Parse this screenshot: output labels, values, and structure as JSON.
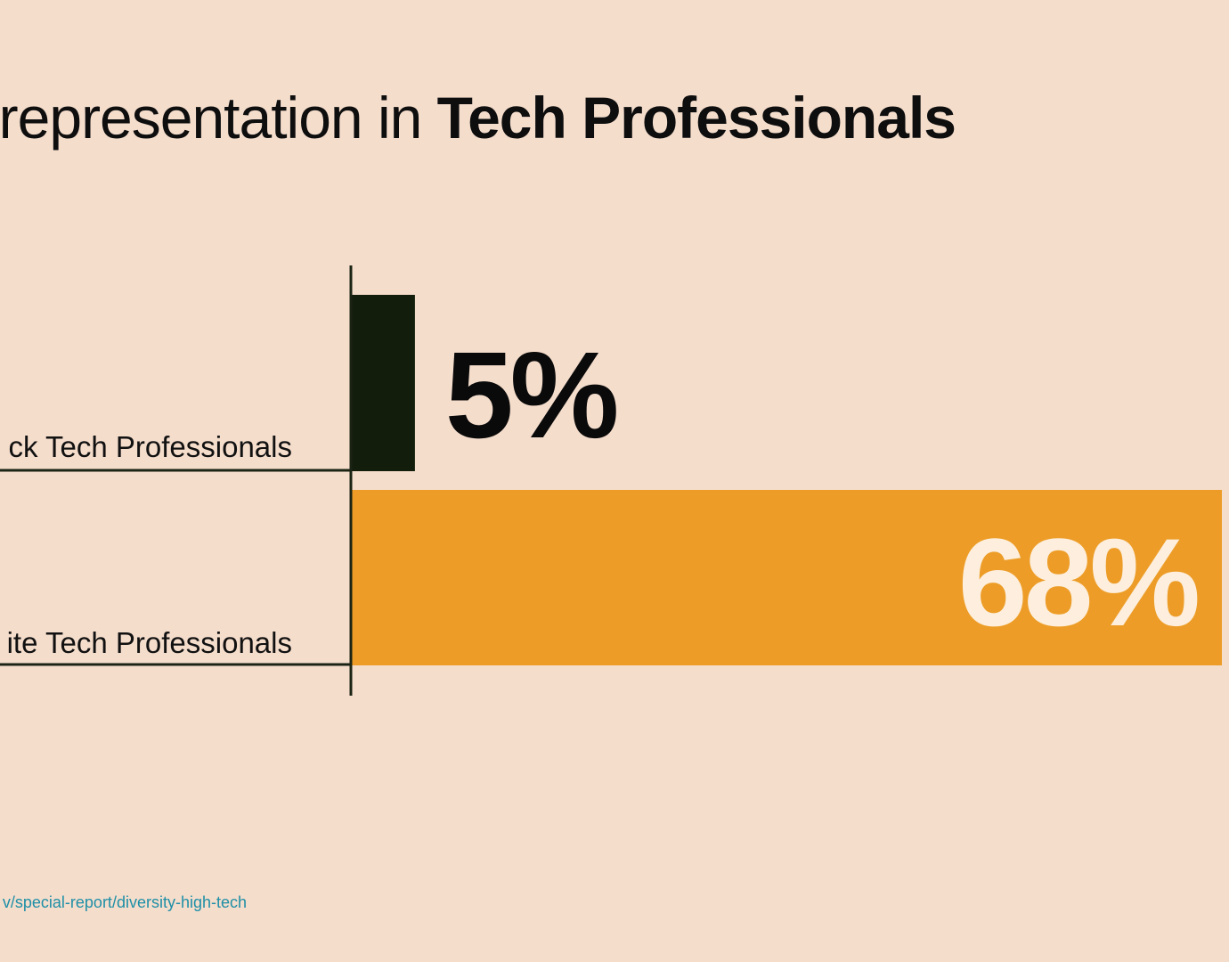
{
  "title": {
    "light": "rrepresentation in ",
    "bold": "Tech Professionals"
  },
  "source": "v/special-report/diversity-high-tech",
  "chart_data": {
    "type": "bar",
    "orientation": "horizontal",
    "categories": [
      "ck Tech Professionals",
      "ite Tech Professionals"
    ],
    "values": [
      5,
      68
    ],
    "value_labels": [
      "5%",
      "68%"
    ],
    "colors": [
      "#131d0c",
      "#ed9d27"
    ],
    "value_label_colors": [
      "#0a0a0a",
      "#fdeedd"
    ],
    "xlim": [
      0,
      68
    ],
    "grid": false,
    "legend": "none"
  },
  "colors": {
    "background": "#f5ddcc",
    "axis": "#1b2414",
    "source_link": "#1e8fa6"
  }
}
